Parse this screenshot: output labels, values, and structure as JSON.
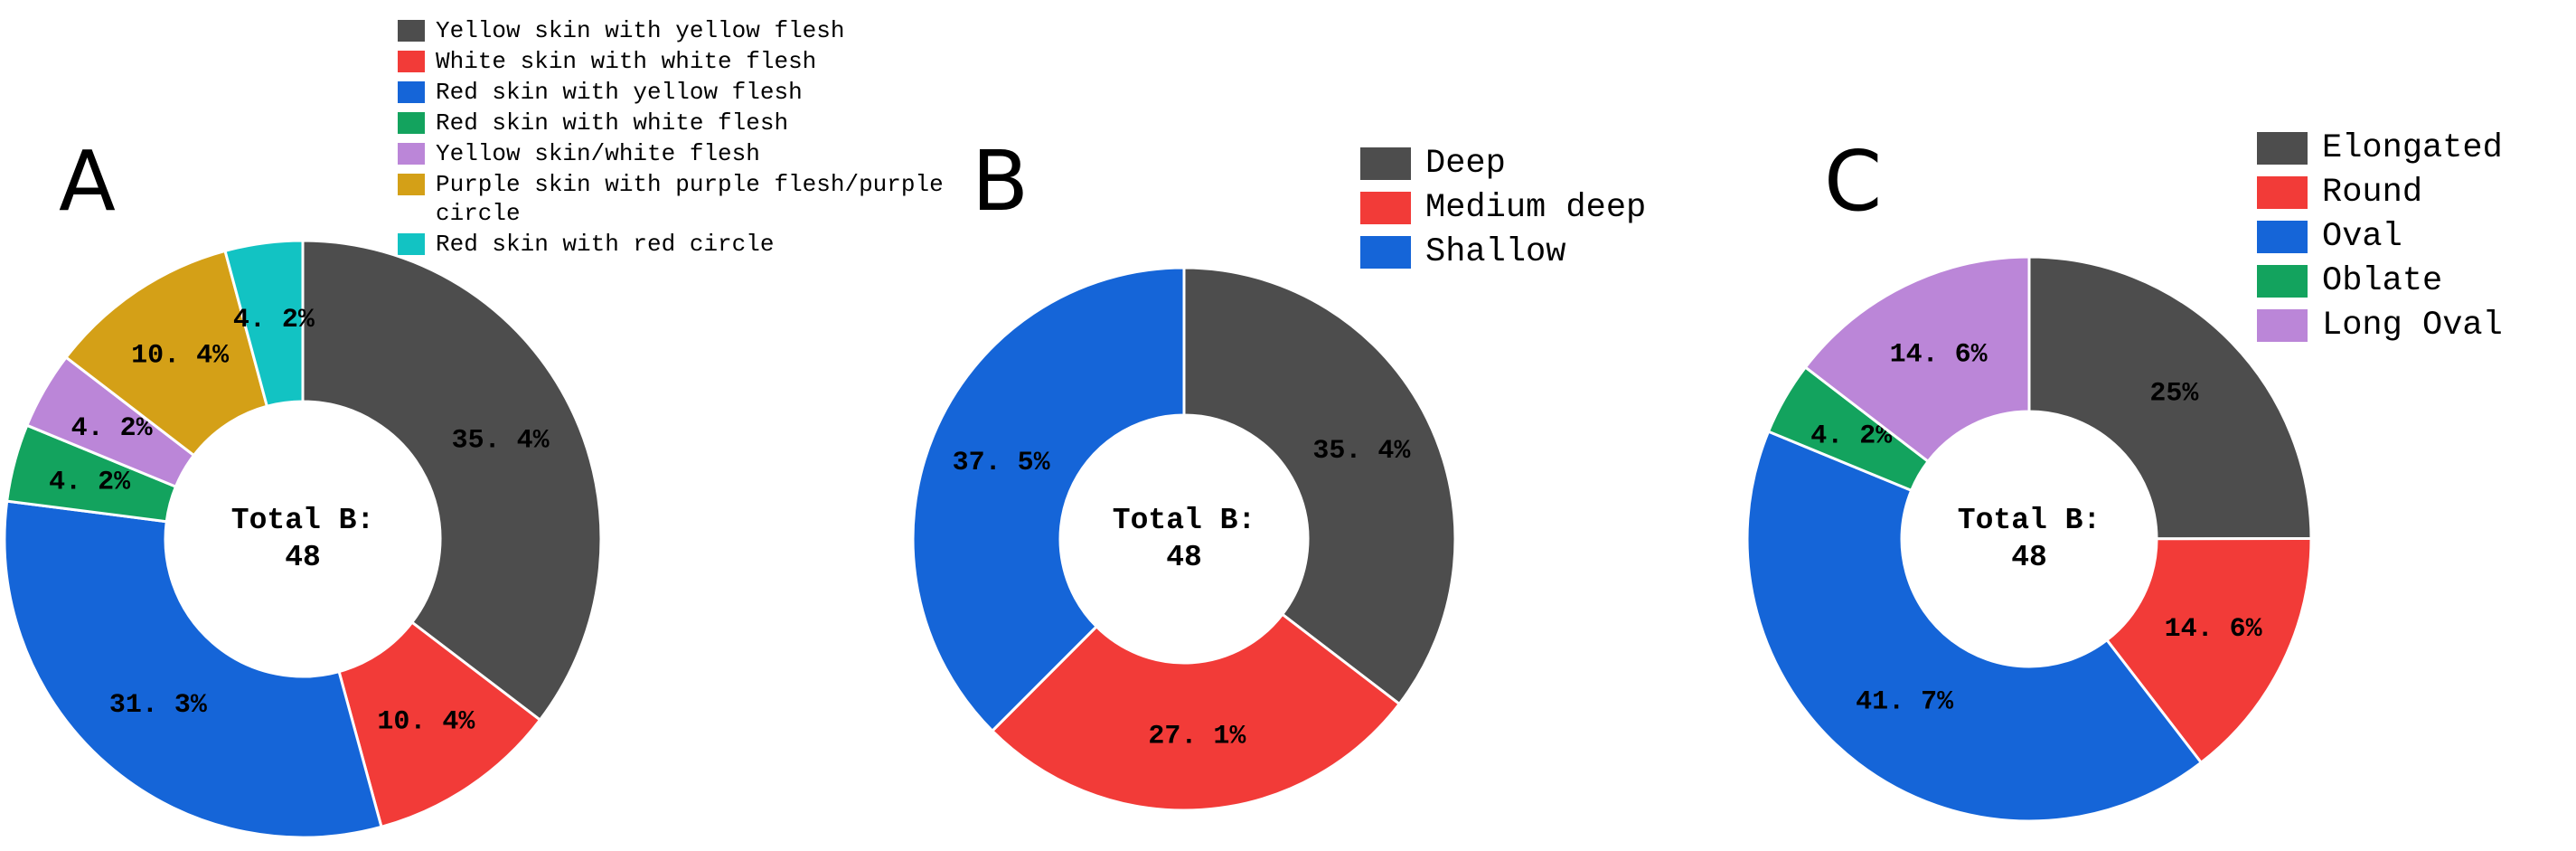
{
  "figure": {
    "background": "#ffffff",
    "text_color": "#000000"
  },
  "chart_data": [
    {
      "type": "pie",
      "subtype": "donut",
      "panel_label": "A",
      "center_label": "Total B:",
      "center_value": "48",
      "legend_position": "top-left",
      "direction": "clockwise",
      "start_angle": "top",
      "categories": [
        "Yellow skin with yellow flesh",
        "White skin with white flesh",
        "Red skin with yellow flesh",
        "Red skin with white flesh",
        "Yellow skin/white flesh",
        "Purple skin with purple flesh/purple circle",
        "Red skin with red circle"
      ],
      "values": [
        35.4,
        10.4,
        31.3,
        4.2,
        4.2,
        10.4,
        4.2
      ],
      "percent_labels": [
        "35. 4%",
        "10. 4%",
        "31. 3%",
        "4. 2%",
        "4. 2%",
        "10. 4%",
        "4. 2%"
      ],
      "colors": [
        "#4d4d4d",
        "#f23b38",
        "#1565d8",
        "#13a35e",
        "#bb86d8",
        "#d4a017",
        "#12c3c3"
      ]
    },
    {
      "type": "pie",
      "subtype": "donut",
      "panel_label": "B",
      "center_label": "Total B:",
      "center_value": "48",
      "legend_position": "right",
      "direction": "clockwise",
      "start_angle": "top",
      "categories": [
        "Deep",
        "Medium deep",
        "Shallow"
      ],
      "values": [
        35.4,
        27.1,
        37.5
      ],
      "percent_labels": [
        "35. 4%",
        "27. 1%",
        "37. 5%"
      ],
      "colors": [
        "#4d4d4d",
        "#f23b38",
        "#1565d8"
      ]
    },
    {
      "type": "pie",
      "subtype": "donut",
      "panel_label": "C",
      "center_label": "Total B:",
      "center_value": "48",
      "legend_position": "right",
      "direction": "clockwise",
      "start_angle": "top",
      "categories": [
        "Elongated",
        "Round",
        "Oval",
        "Oblate",
        "Long Oval"
      ],
      "values": [
        25,
        14.6,
        41.7,
        4.2,
        14.6
      ],
      "percent_labels": [
        "25%",
        "14. 6%",
        "41. 7%",
        "4. 2%",
        "14. 6%"
      ],
      "colors": [
        "#4d4d4d",
        "#f23b38",
        "#1565d8",
        "#13a35e",
        "#bb86d8"
      ]
    }
  ]
}
